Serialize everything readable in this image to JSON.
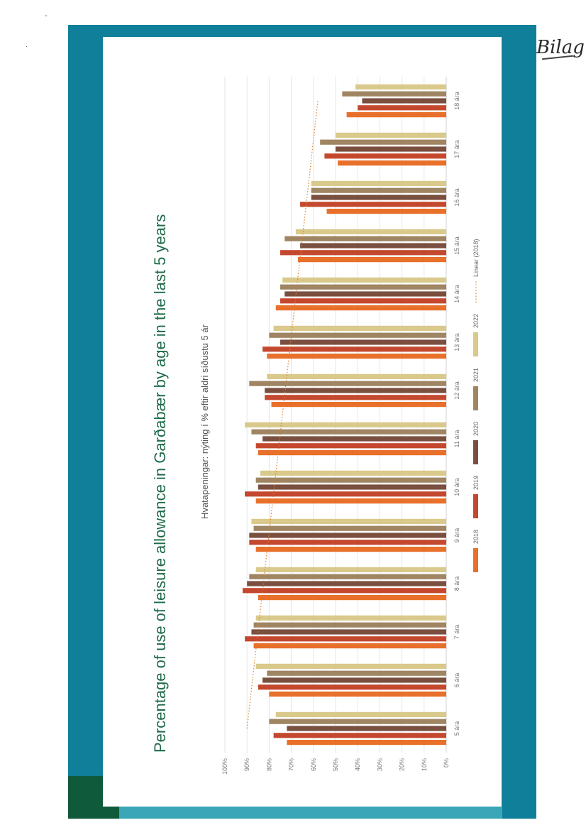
{
  "annotation": {
    "text": "Bilag"
  },
  "chart_data": {
    "type": "bar",
    "title": "Percentage of use of leisure allowance in Garðabær by age in the last 5 years",
    "subtitle": "Hvatapeningar: nýting í % eftir aldri síðustu 5 ár",
    "categories": [
      "5 ára",
      "6 ára",
      "7 ára",
      "8 ára",
      "9 ára",
      "10 ára",
      "11 ára",
      "12 ára",
      "13 ára",
      "14 ára",
      "15 ára",
      "16 ára",
      "17 ára",
      "18 ára"
    ],
    "y_ticks": [
      "0%",
      "10%",
      "20%",
      "30%",
      "40%",
      "50%",
      "60%",
      "70%",
      "80%",
      "90%",
      "100%"
    ],
    "ylim": [
      0,
      100
    ],
    "series": [
      {
        "name": "2018",
        "color": "#e8702a",
        "values": [
          72,
          80,
          87,
          85,
          86,
          86,
          85,
          79,
          81,
          77,
          67,
          54,
          49,
          45
        ]
      },
      {
        "name": "2019",
        "color": "#c4482e",
        "values": [
          78,
          85,
          91,
          92,
          89,
          91,
          86,
          82,
          83,
          75,
          75,
          66,
          55,
          40
        ]
      },
      {
        "name": "2020",
        "color": "#7a4f3f",
        "values": [
          72,
          83,
          88,
          90,
          89,
          85,
          83,
          82,
          75,
          73,
          66,
          61,
          50,
          38
        ]
      },
      {
        "name": "2021",
        "color": "#a08563",
        "values": [
          80,
          81,
          87,
          89,
          87,
          86,
          88,
          89,
          80,
          75,
          73,
          61,
          57,
          47
        ]
      },
      {
        "name": "2022",
        "color": "#d9c98a",
        "values": [
          77,
          86,
          86,
          86,
          88,
          84,
          91,
          81,
          78,
          74,
          68,
          61,
          50,
          41
        ]
      }
    ],
    "trendline": {
      "name": "Linear (2018)",
      "color": "#d9802f",
      "style": "dotted",
      "from": 90,
      "to": 58
    },
    "legend_position": "bottom",
    "grid": true
  }
}
